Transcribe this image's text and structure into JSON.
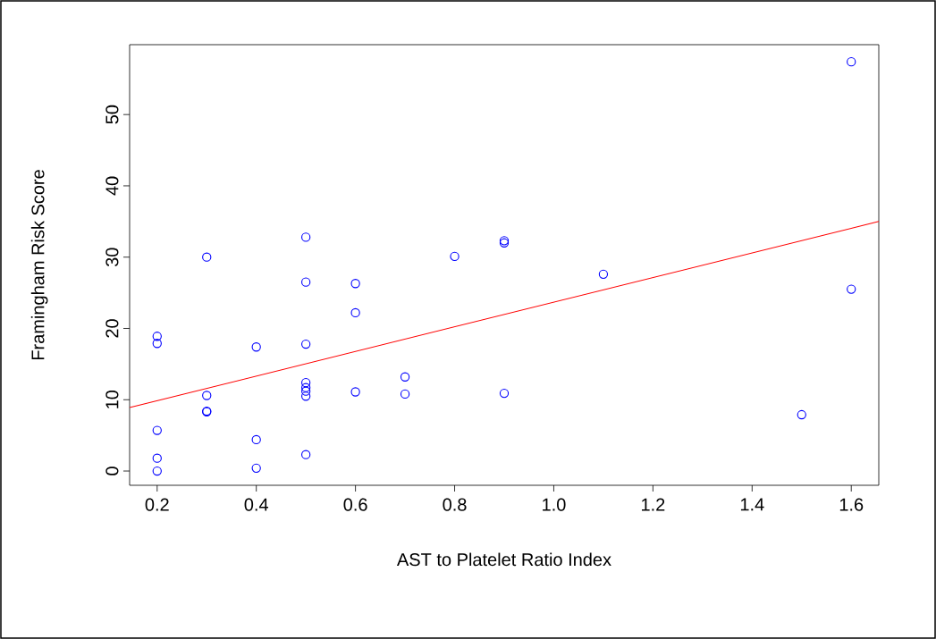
{
  "chart_data": {
    "type": "scatter",
    "xlabel": "AST to Platelet Ratio Index",
    "ylabel": "Framingham Risk Score",
    "xlim": [
      0.1445,
      1.6555
    ],
    "ylim": [
      -2.0,
      59.8
    ],
    "xticks": [
      0.2,
      0.4,
      0.6,
      0.8,
      {
        "value": 1,
        "label": "1.0"
      },
      1.2,
      1.4,
      1.6
    ],
    "yticks": [
      0,
      10,
      20,
      30,
      40,
      50
    ],
    "marker": "circle",
    "series": [
      {
        "color": "#0000ff",
        "x": [
          0.2,
          0.2,
          0.2,
          0.2,
          0.2,
          0.3,
          0.3,
          0.3,
          0.3,
          0.4,
          0.4,
          0.4,
          0.5,
          0.5,
          0.5,
          0.5,
          0.5,
          0.5,
          0.5,
          0.5,
          0.6,
          0.6,
          0.6,
          0.7,
          0.7,
          0.8,
          0.9,
          0.9,
          0.9,
          1.1,
          1.5,
          1.6,
          1.6
        ],
        "values": [
          18.9,
          17.9,
          5.7,
          1.8,
          0,
          30.0,
          10.6,
          8.3,
          8.4,
          17.4,
          4.4,
          0.4,
          32.8,
          26.5,
          17.8,
          12.4,
          11.7,
          11.2,
          10.5,
          2.3,
          26.3,
          22.2,
          11.1,
          13.2,
          10.8,
          30.1,
          32.3,
          32.0,
          10.9,
          27.6,
          7.9,
          57.4,
          25.5
        ]
      },
      {
        "type": "line",
        "color": "#ff0000",
        "marker": "none",
        "x": [
          0.1445,
          1.6555
        ],
        "values": [
          8.9,
          35.0
        ]
      }
    ]
  }
}
